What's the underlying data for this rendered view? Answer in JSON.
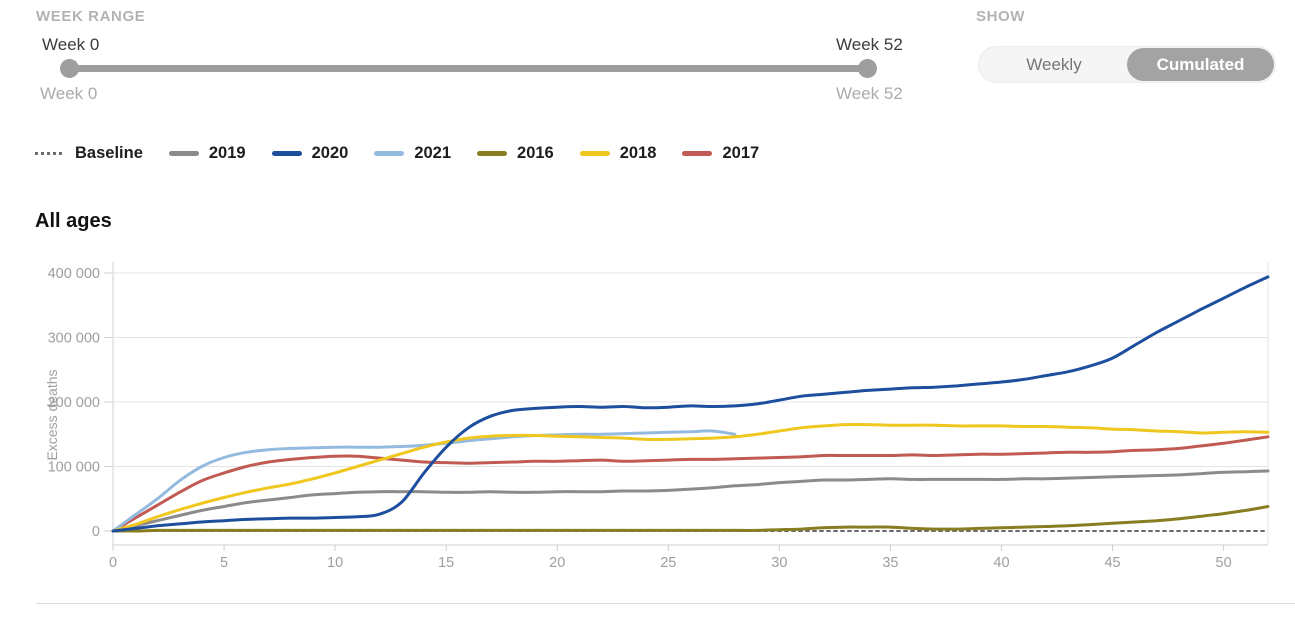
{
  "controls": {
    "week_range": {
      "label": "WEEK RANGE",
      "start_label_top": "Week 0",
      "start_label_bottom": "Week 0",
      "end_label_top": "Week 52",
      "end_label_bottom": "Week 52",
      "slider_color": "#9e9e9e"
    },
    "show": {
      "label": "SHOW",
      "options": [
        {
          "label": "Weekly",
          "selected": false
        },
        {
          "label": "Cumulated",
          "selected": true
        }
      ],
      "selected_bg": "#a3a3a3"
    }
  },
  "legend": {
    "items": [
      {
        "label": "Baseline",
        "color": "#6b6b6b",
        "style": "dashed"
      },
      {
        "label": "2019",
        "color": "#8b8b8b",
        "style": "solid"
      },
      {
        "label": "2020",
        "color": "#1d4f9e",
        "style": "solid"
      },
      {
        "label": "2021",
        "color": "#94bae0",
        "style": "solid"
      },
      {
        "label": "2016",
        "color": "#887d21",
        "style": "solid"
      },
      {
        "label": "2018",
        "color": "#efc71e",
        "style": "solid"
      },
      {
        "label": "2017",
        "color": "#c05a52",
        "style": "solid"
      }
    ]
  },
  "chart_data": {
    "type": "line",
    "title": "All ages",
    "xlabel": "",
    "ylabel": "Excess deaths",
    "xlim": [
      0,
      52
    ],
    "ylim": [
      -22000,
      412000
    ],
    "grid": true,
    "x_ticks": [
      0,
      5,
      10,
      15,
      20,
      25,
      30,
      35,
      40,
      45,
      50
    ],
    "y_ticks": [
      0,
      100000,
      200000,
      300000,
      400000
    ],
    "y_tick_labels": [
      "0",
      "100 000",
      "200 000",
      "300 000",
      "400 000"
    ],
    "x_unit": "week",
    "x": [
      0,
      1,
      2,
      3,
      4,
      5,
      6,
      7,
      8,
      9,
      10,
      11,
      12,
      13,
      14,
      15,
      16,
      17,
      18,
      19,
      20,
      21,
      22,
      23,
      24,
      25,
      26,
      27,
      28,
      29,
      30,
      31,
      32,
      33,
      34,
      35,
      36,
      37,
      38,
      39,
      40,
      41,
      42,
      43,
      44,
      45,
      46,
      47,
      48,
      49,
      50,
      51,
      52
    ],
    "series": [
      {
        "name": "Baseline",
        "color": "#6b6b6b",
        "dashed": true,
        "values": [
          0,
          0,
          0,
          0,
          0,
          0,
          0,
          0,
          0,
          0,
          0,
          0,
          0,
          0,
          0,
          0,
          0,
          0,
          0,
          0,
          0,
          0,
          0,
          0,
          0,
          0,
          0,
          0,
          0,
          0,
          0,
          0,
          0,
          0,
          0,
          0,
          0,
          0,
          0,
          0,
          0,
          0,
          0,
          0,
          0,
          0,
          0,
          0,
          0,
          0,
          0,
          0,
          0
        ]
      },
      {
        "name": "2016",
        "color": "#887d21",
        "dashed": false,
        "values": [
          0,
          0,
          1000,
          1000,
          1000,
          1000,
          1000,
          1000,
          1000,
          1000,
          1000,
          1000,
          1000,
          1000,
          1000,
          1000,
          1000,
          1000,
          1000,
          1000,
          1000,
          1000,
          1000,
          1000,
          1000,
          1000,
          1000,
          1000,
          1000,
          1000,
          2000,
          3000,
          5000,
          6000,
          6000,
          6000,
          4000,
          3000,
          3000,
          4000,
          5000,
          6000,
          7000,
          8000,
          10000,
          12000,
          14000,
          16000,
          19000,
          23000,
          27000,
          32000,
          38000
        ]
      },
      {
        "name": "2019",
        "color": "#8b8b8b",
        "dashed": false,
        "values": [
          0,
          8000,
          16000,
          24000,
          32000,
          38000,
          44000,
          48000,
          52000,
          56000,
          58000,
          60000,
          61000,
          61000,
          61000,
          60000,
          60000,
          61000,
          60000,
          60000,
          61000,
          61000,
          61000,
          62000,
          62000,
          63000,
          65000,
          67000,
          70000,
          72000,
          75000,
          77000,
          79000,
          79000,
          80000,
          81000,
          80000,
          80000,
          80000,
          80000,
          80000,
          81000,
          81000,
          82000,
          83000,
          84000,
          85000,
          86000,
          87000,
          89000,
          91000,
          92000,
          93000
        ]
      },
      {
        "name": "2017",
        "color": "#c05a52",
        "dashed": false,
        "values": [
          0,
          20000,
          40000,
          60000,
          78000,
          90000,
          100000,
          107000,
          111000,
          114000,
          116000,
          116000,
          113000,
          110000,
          107000,
          106000,
          105000,
          106000,
          107000,
          108000,
          108000,
          109000,
          110000,
          108000,
          109000,
          110000,
          111000,
          111000,
          112000,
          113000,
          114000,
          115000,
          117000,
          117000,
          117000,
          117000,
          118000,
          117000,
          118000,
          119000,
          119000,
          120000,
          121000,
          122000,
          122000,
          123000,
          125000,
          126000,
          128000,
          132000,
          136000,
          141000,
          146000
        ]
      },
      {
        "name": "2021",
        "color": "#94bae0",
        "dashed": false,
        "values": [
          0,
          25000,
          50000,
          78000,
          100000,
          114000,
          122000,
          126000,
          128000,
          129000,
          130000,
          130000,
          130000,
          131000,
          133000,
          136000,
          140000,
          143000,
          146000,
          148000,
          149000,
          150000,
          150000,
          151000,
          152000,
          153000,
          154000,
          155000,
          150000
        ]
      },
      {
        "name": "2018",
        "color": "#efc71e",
        "dashed": false,
        "values": [
          0,
          10000,
          22000,
          33000,
          43000,
          52000,
          60000,
          67000,
          73000,
          81000,
          90000,
          100000,
          110000,
          120000,
          130000,
          138000,
          144000,
          147000,
          148000,
          148000,
          147000,
          146000,
          145000,
          144000,
          142000,
          142000,
          143000,
          144000,
          146000,
          150000,
          155000,
          160000,
          163000,
          165000,
          165000,
          164000,
          164000,
          164000,
          163000,
          163000,
          163000,
          162000,
          162000,
          161000,
          160000,
          158000,
          157000,
          155000,
          154000,
          152000,
          153000,
          154000,
          153000
        ]
      },
      {
        "name": "2020",
        "color": "#1d4f9e",
        "dashed": false,
        "values": [
          0,
          4000,
          8000,
          11000,
          14000,
          16000,
          18000,
          19000,
          20000,
          20000,
          21000,
          22000,
          26000,
          45000,
          90000,
          130000,
          160000,
          178000,
          187000,
          190000,
          192000,
          193000,
          192000,
          193000,
          191000,
          192000,
          194000,
          193000,
          194000,
          197000,
          203000,
          209000,
          212000,
          215000,
          218000,
          220000,
          222000,
          223000,
          225000,
          228000,
          231000,
          235000,
          241000,
          247000,
          256000,
          268000,
          288000,
          308000,
          326000,
          344000,
          361000,
          378000,
          394000
        ]
      }
    ],
    "legend_position": "top-left",
    "colors": {
      "gridline": "#e4e4e4",
      "axis": "#cfcfcf",
      "tick_text": "#9e9e9e"
    }
  }
}
